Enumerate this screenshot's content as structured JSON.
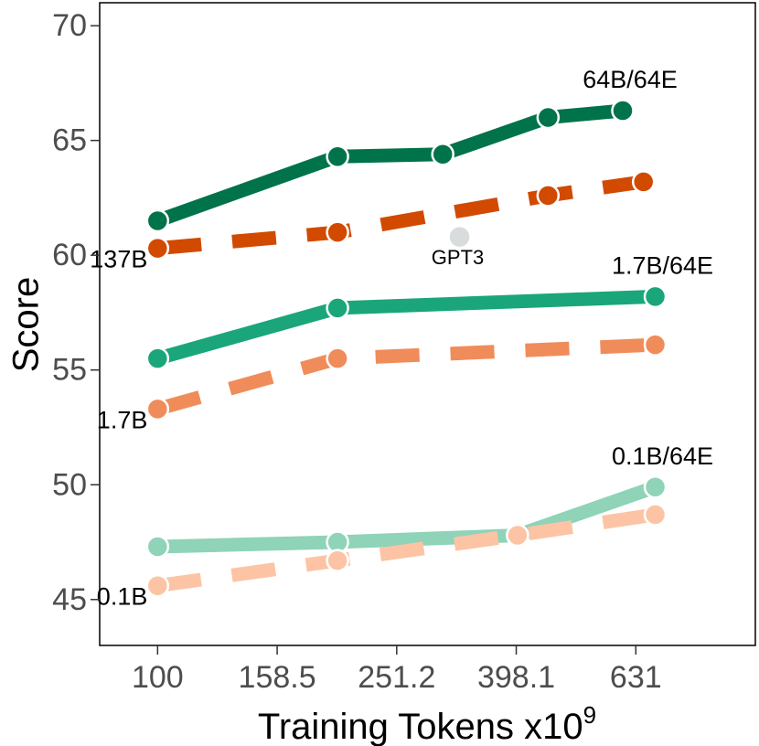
{
  "chart_data": {
    "type": "line",
    "xlabel": "Training Tokens x10",
    "xlabel_superscript": "9",
    "ylabel": "Score",
    "x_scale": "log10",
    "xlim": [
      80,
      1000
    ],
    "ylim": [
      43,
      71
    ],
    "x_ticks": [
      100,
      158.5,
      251.2,
      398.1,
      631
    ],
    "x_tick_labels": [
      "100",
      "158.5",
      "251.2",
      "398.1",
      "631"
    ],
    "y_ticks": [
      45,
      50,
      55,
      60,
      65,
      70
    ],
    "y_tick_labels": [
      "45",
      "50",
      "55",
      "60",
      "65",
      "70"
    ],
    "grid": false,
    "series": [
      {
        "name": "64B/64E",
        "style": "solid",
        "color": "#00734a",
        "x": [
          100,
          200,
          300,
          450,
          600
        ],
        "y": [
          61.5,
          64.3,
          64.4,
          66.0,
          66.3
        ]
      },
      {
        "name": "137B",
        "style": "dashed",
        "color": "#d14a00",
        "x": [
          100,
          200,
          450,
          650
        ],
        "y": [
          60.3,
          61.0,
          62.6,
          63.2
        ]
      },
      {
        "name": "1.7B/64E",
        "style": "solid",
        "color": "#1aa67a",
        "x": [
          100,
          200,
          680
        ],
        "y": [
          55.5,
          57.7,
          58.2
        ]
      },
      {
        "name": "1.7B",
        "style": "dashed",
        "color": "#f08c5a",
        "x": [
          100,
          200,
          680
        ],
        "y": [
          53.3,
          55.5,
          56.1
        ]
      },
      {
        "name": "0.1B/64E",
        "style": "solid",
        "color": "#8fd3b8",
        "x": [
          100,
          200,
          400,
          680
        ],
        "y": [
          47.3,
          47.5,
          47.8,
          49.9
        ]
      },
      {
        "name": "0.1B",
        "style": "dashed",
        "color": "#fcc4a4",
        "x": [
          100,
          200,
          400,
          680
        ],
        "y": [
          45.6,
          46.7,
          47.8,
          48.7
        ]
      }
    ],
    "extra_points": [
      {
        "name": "GPT3",
        "x": 320,
        "y": 60.8,
        "color": "#d9dcdd"
      }
    ],
    "annotations": [
      {
        "text": "64B/64E",
        "series": "64B/64E",
        "at": "end"
      },
      {
        "text": "137B",
        "series": "137B",
        "at": "start"
      },
      {
        "text": "1.7B/64E",
        "series": "1.7B/64E",
        "at": "end"
      },
      {
        "text": "1.7B",
        "series": "1.7B",
        "at": "start"
      },
      {
        "text": "0.1B/64E",
        "series": "0.1B/64E",
        "at": "end"
      },
      {
        "text": "0.1B",
        "series": "0.1B",
        "at": "start"
      },
      {
        "text": "GPT3",
        "series": "GPT3",
        "at": "point"
      }
    ]
  }
}
